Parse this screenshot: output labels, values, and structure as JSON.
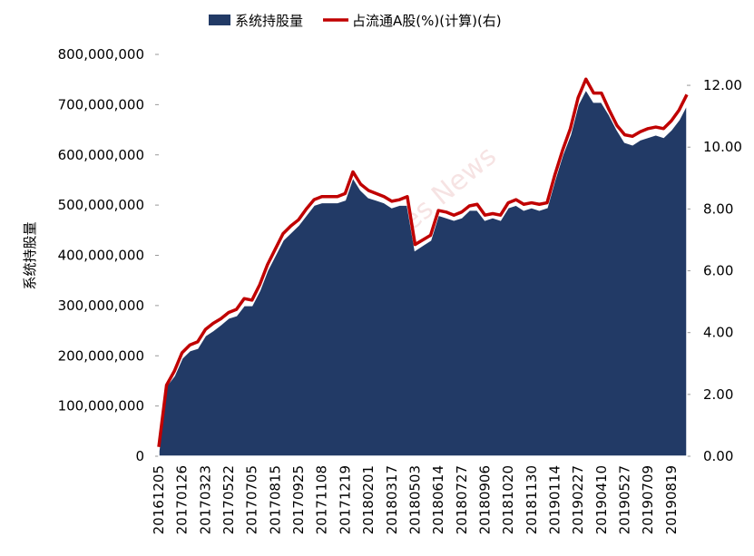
{
  "chart_data": {
    "type": "area-line",
    "watermark": "Shanghai Securities News",
    "y_label": "系统持股量",
    "categories": [
      "20161205",
      null,
      null,
      "20170126",
      null,
      null,
      "20170323",
      null,
      null,
      "20170522",
      null,
      null,
      "20170705",
      null,
      null,
      "20170815",
      null,
      null,
      "20170925",
      null,
      null,
      "20171108",
      null,
      null,
      "20171219",
      null,
      null,
      "20180201",
      null,
      null,
      "20180317",
      null,
      null,
      "20180503",
      null,
      null,
      "20180614",
      null,
      null,
      "20180727",
      null,
      null,
      "20180906",
      null,
      null,
      "20181020",
      null,
      null,
      "20181130",
      null,
      null,
      "20190114",
      null,
      null,
      "20190227",
      null,
      null,
      "20190410",
      null,
      null,
      "20190527",
      null,
      null,
      "20190709",
      null,
      null,
      "20190819",
      null,
      null
    ],
    "series": [
      {
        "name": "系统持股量",
        "color": "#223a66",
        "values": [
          10000000,
          140000000,
          160000000,
          195000000,
          210000000,
          215000000,
          240000000,
          250000000,
          262000000,
          275000000,
          280000000,
          300000000,
          300000000,
          330000000,
          370000000,
          400000000,
          430000000,
          445000000,
          460000000,
          480000000,
          500000000,
          505000000,
          505000000,
          505000000,
          510000000,
          555000000,
          530000000,
          515000000,
          510000000,
          505000000,
          495000000,
          500000000,
          500000000,
          410000000,
          420000000,
          430000000,
          480000000,
          475000000,
          470000000,
          475000000,
          490000000,
          490000000,
          470000000,
          475000000,
          470000000,
          495000000,
          500000000,
          490000000,
          495000000,
          490000000,
          495000000,
          550000000,
          600000000,
          640000000,
          700000000,
          730000000,
          705000000,
          705000000,
          680000000,
          650000000,
          625000000,
          620000000,
          630000000,
          635000000,
          640000000,
          635000000,
          650000000,
          670000000,
          700000000
        ]
      },
      {
        "name": "占流通A股(%)(计算)(右)",
        "color": "#c00000",
        "axis": "y2",
        "values": [
          0.3,
          2.3,
          2.75,
          3.35,
          3.6,
          3.7,
          4.1,
          4.3,
          4.45,
          4.65,
          4.75,
          5.1,
          5.05,
          5.55,
          6.2,
          6.7,
          7.2,
          7.45,
          7.65,
          8.0,
          8.3,
          8.4,
          8.4,
          8.4,
          8.5,
          9.2,
          8.8,
          8.6,
          8.5,
          8.4,
          8.25,
          8.3,
          8.4,
          6.85,
          7.0,
          7.15,
          7.95,
          7.9,
          7.8,
          7.9,
          8.1,
          8.15,
          7.8,
          7.85,
          7.8,
          8.2,
          8.3,
          8.15,
          8.2,
          8.15,
          8.2,
          9.1,
          9.9,
          10.6,
          11.6,
          12.2,
          11.75,
          11.75,
          11.2,
          10.7,
          10.4,
          10.35,
          10.5,
          10.6,
          10.65,
          10.6,
          10.85,
          11.2,
          11.7
        ]
      }
    ],
    "ylim": [
      0,
      800000000
    ],
    "yticks": [
      {
        "value": 0,
        "label": "0"
      },
      {
        "value": 100000000,
        "label": "100,000,000"
      },
      {
        "value": 200000000,
        "label": "200,000,000"
      },
      {
        "value": 300000000,
        "label": "300,000,000"
      },
      {
        "value": 400000000,
        "label": "400,000,000"
      },
      {
        "value": 500000000,
        "label": "500,000,000"
      },
      {
        "value": 600000000,
        "label": "600,000,000"
      },
      {
        "value": 700000000,
        "label": "700,000,000"
      },
      {
        "value": 800000000,
        "label": "800,000,000"
      }
    ],
    "y2lim": [
      0,
      13
    ],
    "y2ticks": [
      {
        "value": 0,
        "label": "0.00"
      },
      {
        "value": 2,
        "label": "2.00"
      },
      {
        "value": 4,
        "label": "4.00"
      },
      {
        "value": 6,
        "label": "6.00"
      },
      {
        "value": 8,
        "label": "8.00"
      },
      {
        "value": 10,
        "label": "10.00"
      },
      {
        "value": 12,
        "label": "12.00"
      }
    ]
  }
}
